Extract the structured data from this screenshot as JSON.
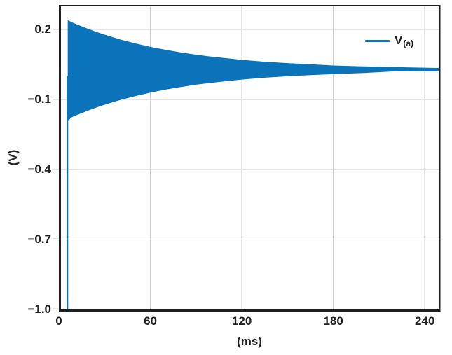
{
  "colors": {
    "series_blue": "#0a73ba",
    "spine_black": "#201e1f",
    "grid_gray": "#c9cacb",
    "text_dark": "#232122",
    "background": "#ffffff"
  },
  "axes": {
    "x_title": "(ms)",
    "y_title": "(V)",
    "x_ticks": [
      {
        "label": "0",
        "value": 0
      },
      {
        "label": "60",
        "value": 60
      },
      {
        "label": "120",
        "value": 120
      },
      {
        "label": "180",
        "value": 180
      },
      {
        "label": "240",
        "value": 240
      }
    ],
    "y_ticks": [
      {
        "label": "0.2",
        "value": 0.2
      },
      {
        "label": "−0.1",
        "value": -0.1
      },
      {
        "label": "−0.4",
        "value": -0.4
      },
      {
        "label": "−0.7",
        "value": -0.7
      },
      {
        "label": "−1.0",
        "value": -1.0
      }
    ]
  },
  "legend": {
    "label": "V",
    "sub": "(a)",
    "series_name": "V(a)"
  },
  "chart_data": {
    "type": "line",
    "title": "",
    "xlabel": "(ms)",
    "ylabel": "(V)",
    "xlim": [
      0,
      250
    ],
    "ylim": [
      -1.0,
      0.3
    ],
    "grid": true,
    "legend_position": "upper right",
    "series": [
      {
        "name": "V(a)",
        "description": "High-frequency damped oscillation rendered as a solid envelope band; initial negative transient spike to -1.0 V at ~5.5 ms, ringing decays with ~70 ms time constant and settles near +0.03 V.",
        "initial_spike": {
          "t_ms": 5.6,
          "v_min": -1.0,
          "v_top": 0.0
        },
        "settle_value_v": 0.03,
        "envelope": {
          "t_ms": [
            6,
            8,
            10,
            15,
            20,
            25,
            30,
            35,
            40,
            50,
            60,
            70,
            80,
            90,
            100,
            110,
            120,
            135,
            150,
            165,
            180,
            200,
            220,
            250
          ],
          "upper_v": [
            0.238,
            0.231,
            0.225,
            0.212,
            0.199,
            0.187,
            0.176,
            0.166,
            0.156,
            0.139,
            0.124,
            0.111,
            0.1,
            0.09,
            0.082,
            0.075,
            0.068,
            0.06,
            0.054,
            0.049,
            0.044,
            0.04,
            0.037,
            0.033
          ],
          "lower_v": [
            -0.192,
            -0.177,
            -0.171,
            -0.158,
            -0.145,
            -0.133,
            -0.122,
            -0.112,
            -0.102,
            -0.085,
            -0.07,
            -0.057,
            -0.046,
            -0.036,
            -0.028,
            -0.021,
            -0.014,
            -0.006,
            0.0,
            0.005,
            0.009,
            0.014,
            0.021,
            0.021
          ]
        }
      }
    ]
  }
}
